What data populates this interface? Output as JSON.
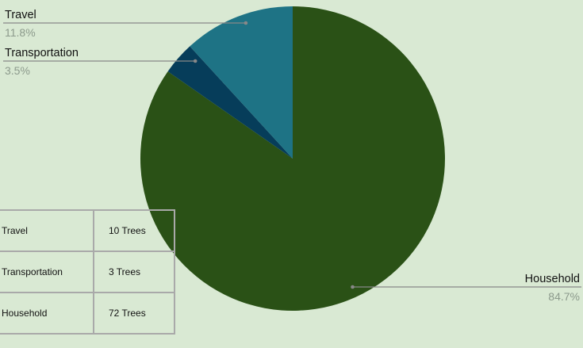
{
  "chart_data": {
    "type": "pie",
    "slices": [
      {
        "label": "Household",
        "value": 84.7,
        "percent_label": "84.7%",
        "color": "#2a5116"
      },
      {
        "label": "Transportation",
        "value": 3.5,
        "percent_label": "3.5%",
        "color": "#063d5a"
      },
      {
        "label": "Travel",
        "value": 11.8,
        "percent_label": "11.8%",
        "color": "#1e7385"
      }
    ],
    "start": "clockwise from 12 o'clock",
    "label_style": "leader lines with category name and percentage",
    "text_color": "#111111",
    "percent_color": "#8c9a8c",
    "leader_color": "#888888"
  },
  "table": {
    "rows": [
      {
        "category": "Travel",
        "value": "10 Trees"
      },
      {
        "category": "Transportation",
        "value": "3 Trees"
      },
      {
        "category": "Household",
        "value": "72 Trees"
      }
    ]
  }
}
